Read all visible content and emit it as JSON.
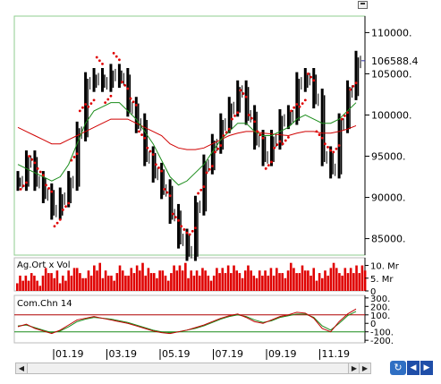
{
  "chart_data": [
    {
      "type": "line",
      "panel": "price",
      "title": "",
      "y_ticks": [
        85000,
        90000,
        95000,
        100000,
        105000,
        110000
      ],
      "y_tick_labels": [
        "85000.",
        "90000.",
        "95000.",
        "100000.",
        "105000.",
        "110000."
      ],
      "ylim": [
        83000,
        112000
      ],
      "last_value": 106588.4,
      "last_value_label": "106588.4",
      "x_tick_labels": [
        "01.19",
        "03.19",
        "05.19",
        "07.19",
        "09.19",
        "11.19"
      ],
      "series": [
        {
          "style": "black-bars",
          "close": [
            92000,
            94500,
            92000,
            90500,
            88500,
            90000,
            92000,
            98000,
            104000,
            104500,
            104000,
            105000,
            104500,
            101000,
            99000,
            95000,
            93000,
            91000,
            88000,
            85000,
            83500,
            89000,
            94000,
            96500,
            99000,
            101000,
            103000,
            100000,
            97000,
            95000,
            97000,
            99500,
            100000,
            104000,
            104500,
            102000,
            95000,
            93500,
            99000,
            103000,
            106588.4
          ]
        },
        {
          "style": "green",
          "values": [
            94000,
            93500,
            93000,
            92500,
            92000,
            92500,
            94000,
            96500,
            99000,
            100500,
            101000,
            101500,
            101500,
            100500,
            99500,
            98000,
            96500,
            94500,
            92500,
            91500,
            92000,
            93000,
            94000,
            95500,
            97000,
            98000,
            99000,
            99000,
            98000,
            97500,
            97500,
            98000,
            98500,
            99500,
            100000,
            99500,
            99000,
            99000,
            99500,
            100500,
            101500
          ]
        },
        {
          "style": "red",
          "values": [
            98500,
            98000,
            97500,
            97000,
            96500,
            96500,
            97000,
            97500,
            98000,
            98500,
            99000,
            99500,
            99500,
            99500,
            99000,
            98500,
            98000,
            97500,
            96500,
            96000,
            95800,
            95800,
            96000,
            96500,
            97000,
            97500,
            97800,
            98000,
            98000,
            97800,
            97700,
            97600,
            97500,
            97800,
            98000,
            98000,
            97800,
            97800,
            98000,
            98300,
            98700
          ]
        }
      ]
    },
    {
      "type": "bar",
      "panel": "volume",
      "label": "Ag.Ort x Vol",
      "y_tick_labels": [
        "10. Mr",
        "5. Mr",
        "0"
      ],
      "ylim": [
        0,
        13
      ],
      "values": [
        5,
        6,
        4,
        7,
        6,
        5,
        8,
        7,
        6,
        9,
        7,
        6,
        8,
        7,
        9,
        8,
        7,
        6,
        8,
        9,
        7,
        8,
        6,
        7,
        8,
        9,
        7,
        8,
        6,
        7,
        8,
        7,
        9,
        8,
        7,
        6,
        8,
        9,
        7,
        8,
        9
      ]
    },
    {
      "type": "line",
      "panel": "oscillator",
      "label": "Com.Chn 14",
      "y_tick_labels": [
        "300.",
        "200.",
        "100.",
        "0",
        "-100.",
        "-200."
      ],
      "ylim": [
        -230,
        330
      ],
      "reference_lines": [
        100,
        -100
      ],
      "series": [
        {
          "style": "red",
          "values": [
            -40,
            -10,
            -60,
            -90,
            -120,
            -80,
            -20,
            40,
            60,
            80,
            60,
            40,
            20,
            0,
            -30,
            -60,
            -90,
            -110,
            -120,
            -100,
            -80,
            -50,
            -20,
            20,
            60,
            90,
            110,
            70,
            20,
            0,
            40,
            80,
            100,
            130,
            120,
            60,
            -60,
            -100,
            20,
            110,
            170
          ]
        },
        {
          "style": "green",
          "values": [
            -30,
            -20,
            -50,
            -80,
            -110,
            -90,
            -40,
            20,
            50,
            70,
            60,
            50,
            30,
            10,
            -20,
            -50,
            -80,
            -100,
            -110,
            -100,
            -80,
            -60,
            -30,
            10,
            50,
            80,
            100,
            80,
            40,
            10,
            30,
            70,
            90,
            110,
            110,
            70,
            -30,
            -80,
            0,
            90,
            140
          ]
        }
      ]
    }
  ]
}
